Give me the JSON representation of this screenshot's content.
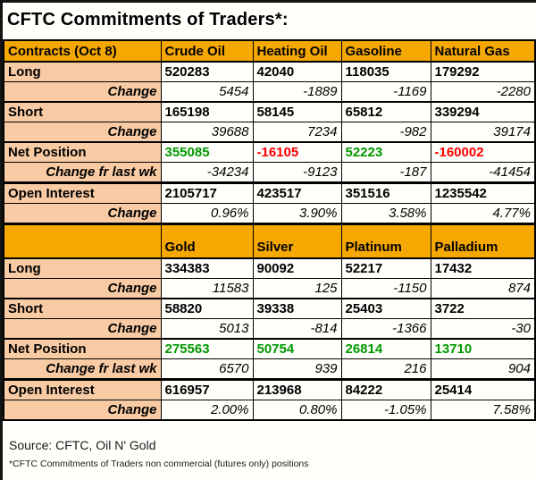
{
  "colors": {
    "positive": "#009900",
    "negative": "#ff0000",
    "header_bg": "#f5a802",
    "label_bg": "#f8cba4"
  },
  "chart_data": {
    "type": "table",
    "title": "CFTC Commitments of Traders*:",
    "sections": [
      {
        "name": "energy",
        "header": [
          "Contracts (Oct 8)",
          "Crude Oil",
          "Heating Oil",
          "Gasoline",
          "Natural Gas"
        ],
        "rows": [
          {
            "label": "Long",
            "type": "main",
            "values": [
              "520283",
              "42040",
              "118035",
              "179292"
            ]
          },
          {
            "label": "Change",
            "type": "change",
            "values": [
              "5454",
              "-1889",
              "-1169",
              "-2280"
            ]
          },
          {
            "label": "Short",
            "type": "main",
            "values": [
              "165198",
              "58145",
              "65812",
              "339294"
            ]
          },
          {
            "label": "Change",
            "type": "change",
            "values": [
              "39688",
              "7234",
              "-982",
              "39174"
            ]
          },
          {
            "label": "Net Position",
            "type": "net",
            "values": [
              "355085",
              "-16105",
              "52223",
              "-160002"
            ],
            "value_states": [
              "positive",
              "negative",
              "positive",
              "negative"
            ]
          },
          {
            "label": "Change fr last wk",
            "type": "change",
            "values": [
              "-34234",
              "-9123",
              "-187",
              "-41454"
            ]
          },
          {
            "label": "Open Interest",
            "type": "main",
            "group": "oi",
            "values": [
              "2105717",
              "423517",
              "351516",
              "1235542"
            ]
          },
          {
            "label": "Change",
            "type": "change",
            "values": [
              "0.96%",
              "3.90%",
              "3.58%",
              "4.77%"
            ]
          }
        ]
      },
      {
        "name": "metals",
        "header": [
          "",
          "Gold",
          "Silver",
          "Platinum",
          "Palladium"
        ],
        "rows": [
          {
            "label": "Long",
            "type": "main",
            "values": [
              "334383",
              "90092",
              "52217",
              "17432"
            ]
          },
          {
            "label": "Change",
            "type": "change",
            "values": [
              "11583",
              "125",
              "-1150",
              "874"
            ]
          },
          {
            "label": "Short",
            "type": "main",
            "values": [
              "58820",
              "39338",
              "25403",
              "3722"
            ]
          },
          {
            "label": "Change",
            "type": "change",
            "values": [
              "5013",
              "-814",
              "-1366",
              "-30"
            ]
          },
          {
            "label": "Net Position",
            "type": "net",
            "values": [
              "275563",
              "50754",
              "26814",
              "13710"
            ],
            "value_states": [
              "positive",
              "positive",
              "positive",
              "positive"
            ]
          },
          {
            "label": "Change fr last wk",
            "type": "change",
            "values": [
              "6570",
              "939",
              "216",
              "904"
            ]
          },
          {
            "label": "Open Interest",
            "type": "main",
            "group": "oi",
            "values": [
              "616957",
              "213968",
              "84222",
              "25414"
            ]
          },
          {
            "label": "Change",
            "type": "change",
            "values": [
              "2.00%",
              "0.80%",
              "-1.05%",
              "7.58%"
            ]
          }
        ]
      }
    ],
    "footer": {
      "source": "Source: CFTC, Oil N' Gold",
      "note": "*CFTC Commitments of Traders non commercial (futures only) positions"
    }
  }
}
